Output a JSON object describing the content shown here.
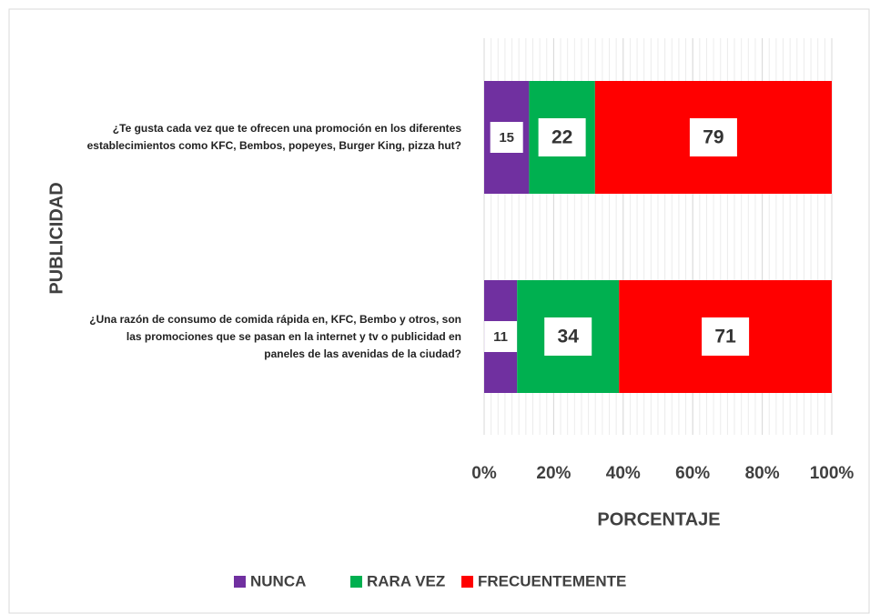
{
  "chart_data": {
    "type": "bar",
    "orientation": "horizontal",
    "stacking": "percent",
    "categories": [
      "¿Te gusta cada vez que te ofrecen una promoción en los diferentes establecimientos como KFC, Bembos, popeyes, Burger King, pizza hut?",
      "¿Una razón de consumo de comida rápida en,  KFC, Bembo y otros,  son las promociones  que se pasan  en la  internet y tv o publicidad en paneles de las avenidas de la ciudad?"
    ],
    "series": [
      {
        "name": "NUNCA",
        "color": "#7030a0",
        "values": [
          15,
          11
        ]
      },
      {
        "name": "RARA VEZ",
        "color": "#00b050",
        "values": [
          22,
          34
        ]
      },
      {
        "name": "FRECUENTEMENTE",
        "color": "#ff0000",
        "values": [
          79,
          71
        ]
      }
    ],
    "xlabel": "PORCENTAJE",
    "ylabel": "PUBLICIDAD",
    "xlim": [
      0,
      100
    ],
    "xticks": [
      {
        "value": 0,
        "label": "0%"
      },
      {
        "value": 20,
        "label": "20%"
      },
      {
        "value": 40,
        "label": "40%"
      },
      {
        "value": 60,
        "label": "60%"
      },
      {
        "value": 80,
        "label": "80%"
      },
      {
        "value": 100,
        "label": "100%"
      }
    ],
    "grid": true,
    "legend": "bottom"
  }
}
